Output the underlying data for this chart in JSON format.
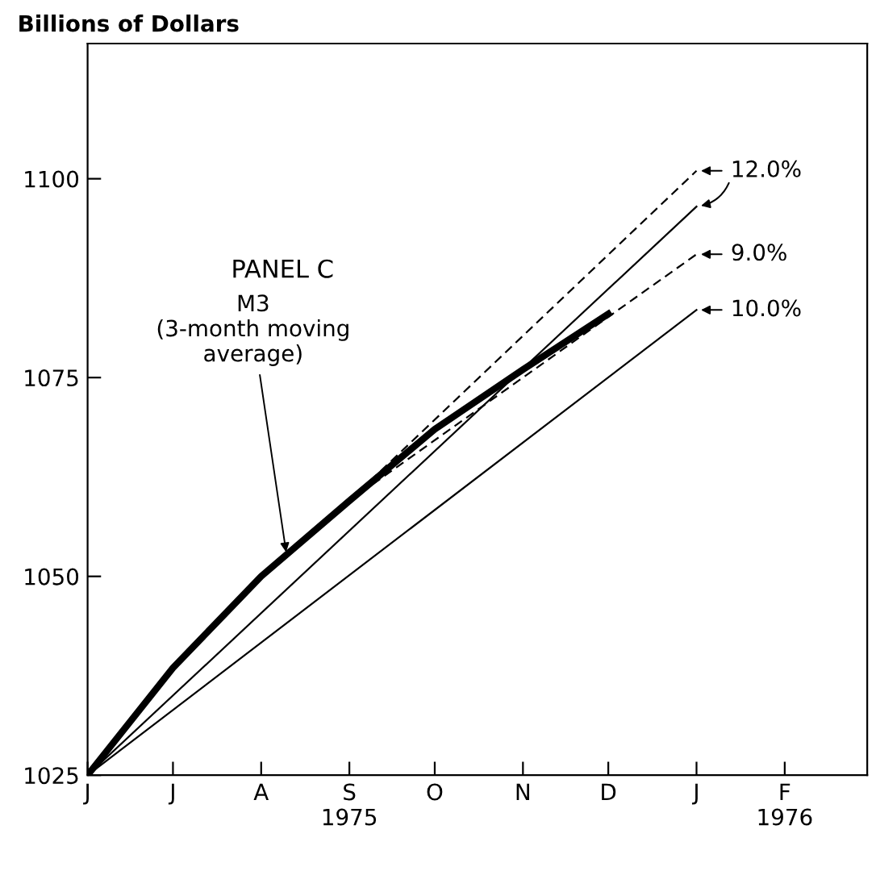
{
  "chart_data": {
    "type": "line",
    "ylabel": "Billions of Dollars",
    "xlim": [
      "1975-06",
      "1976-03"
    ],
    "xticks": [
      {
        "value": "1975-06",
        "label": "J"
      },
      {
        "value": "1975-07",
        "label": "J"
      },
      {
        "value": "1975-08",
        "label": "A"
      },
      {
        "value": "1975-09",
        "label": "S\n1975"
      },
      {
        "value": "1975-10",
        "label": "O"
      },
      {
        "value": "1975-11",
        "label": "N"
      },
      {
        "value": "1975-12",
        "label": "D"
      },
      {
        "value": "1976-01",
        "label": "J"
      },
      {
        "value": "1976-02",
        "label": "F\n1976"
      }
    ],
    "ylim": [
      1025,
      1117
    ],
    "yticks": [
      1025,
      1050,
      1075,
      1100
    ],
    "grid": false,
    "legend": false,
    "marker": "none",
    "series": [
      {
        "color": "#000000",
        "line_style": "solid",
        "x": [
          "1975-06",
          "1975-07",
          "1975-08",
          "1975-09",
          "1975-10",
          "1975-11",
          "1975-12"
        ],
        "values": [
          1025,
          1038.5,
          1050,
          1059.5,
          1068.5,
          1076,
          1083
        ]
      },
      {
        "color": "#000000",
        "line_style": "dashed",
        "x": [
          "1975-09",
          "1976-01"
        ],
        "values": [
          1059.5,
          1101
        ]
      },
      {
        "color": "#000000",
        "line_style": "solid",
        "x": [
          "1975-06",
          "1976-01"
        ],
        "values": [
          1025,
          1096.5
        ]
      },
      {
        "color": "#000000",
        "line_style": "dashed",
        "x": [
          "1975-09",
          "1976-01"
        ],
        "values": [
          1059.5,
          1090.5
        ]
      },
      {
        "color": "#000000",
        "line_style": "solid",
        "x": [
          "1975-06",
          "1976-01"
        ],
        "values": [
          1025,
          1083.5
        ]
      }
    ],
    "annotations": [
      "PANEL C",
      {
        "text": "M3\n(3-month moving\naverage)",
        "x": "1975-08-10",
        "y": 1052.5
      },
      {
        "text": "12.0%",
        "x": "1976-01",
        "y": 1101
      },
      {
        "text": "9.0%",
        "x": "1976-01",
        "y": 1090.5
      },
      {
        "text": "10.0%",
        "x": "1976-01",
        "y": 1083.5
      }
    ]
  }
}
